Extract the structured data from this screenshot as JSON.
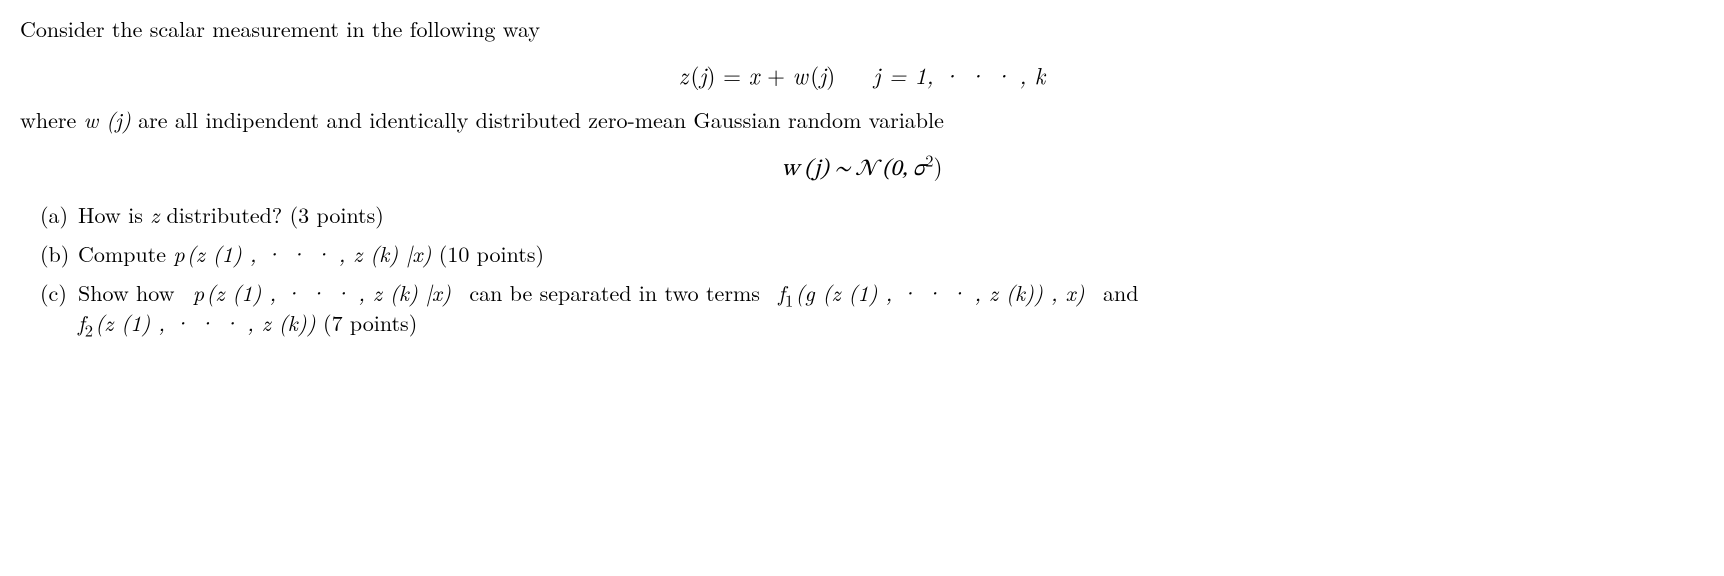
{
  "text": {
    "intro": "Consider the scalar measurement in the following way",
    "where": "are all indipendent and identically distributed zero-mean Gaussian random variable",
    "where_prefix": "where",
    "q_a_marker": "(a)",
    "q_b_marker": "(b)",
    "q_c_marker": "(c)",
    "q_a_pre": "How is",
    "q_a_post": "distributed? (3 points)",
    "q_b_pre": "Compute",
    "q_b_post": "(10 points)",
    "q_c_pre": "Show how",
    "q_c_mid": "can be separated in two terms",
    "q_c_and": "and",
    "q_c_post": "(7 points)"
  },
  "math": {
    "z": "z",
    "j_paren_open": "(",
    "j": "j",
    "j_paren_close": ")",
    "eq": "=",
    "x": "x",
    "plus": "+",
    "w": "w",
    "range": "j = 1, · · · , k",
    "noise_dist": "w (j) ∼ 𝒩 (0, σ",
    "sq": "2",
    "noise_close": ")",
    "wj": "w (j)",
    "p": "p",
    "zseq": "(z (1) , · · · , z (k) |x)",
    "f1": "f",
    "one": "1",
    "f1_args": "(g (z (1) , · · · , z (k)) , x)",
    "f2": "f",
    "two": "2",
    "f2_args": "(z (1) , · · · , z (k))"
  },
  "style": {
    "font_size_pt": 22,
    "display_font_size_pt": 23,
    "text_color": "#000000",
    "background_color": "#ffffff",
    "font_family": "Computer Modern / Times-like serif"
  }
}
